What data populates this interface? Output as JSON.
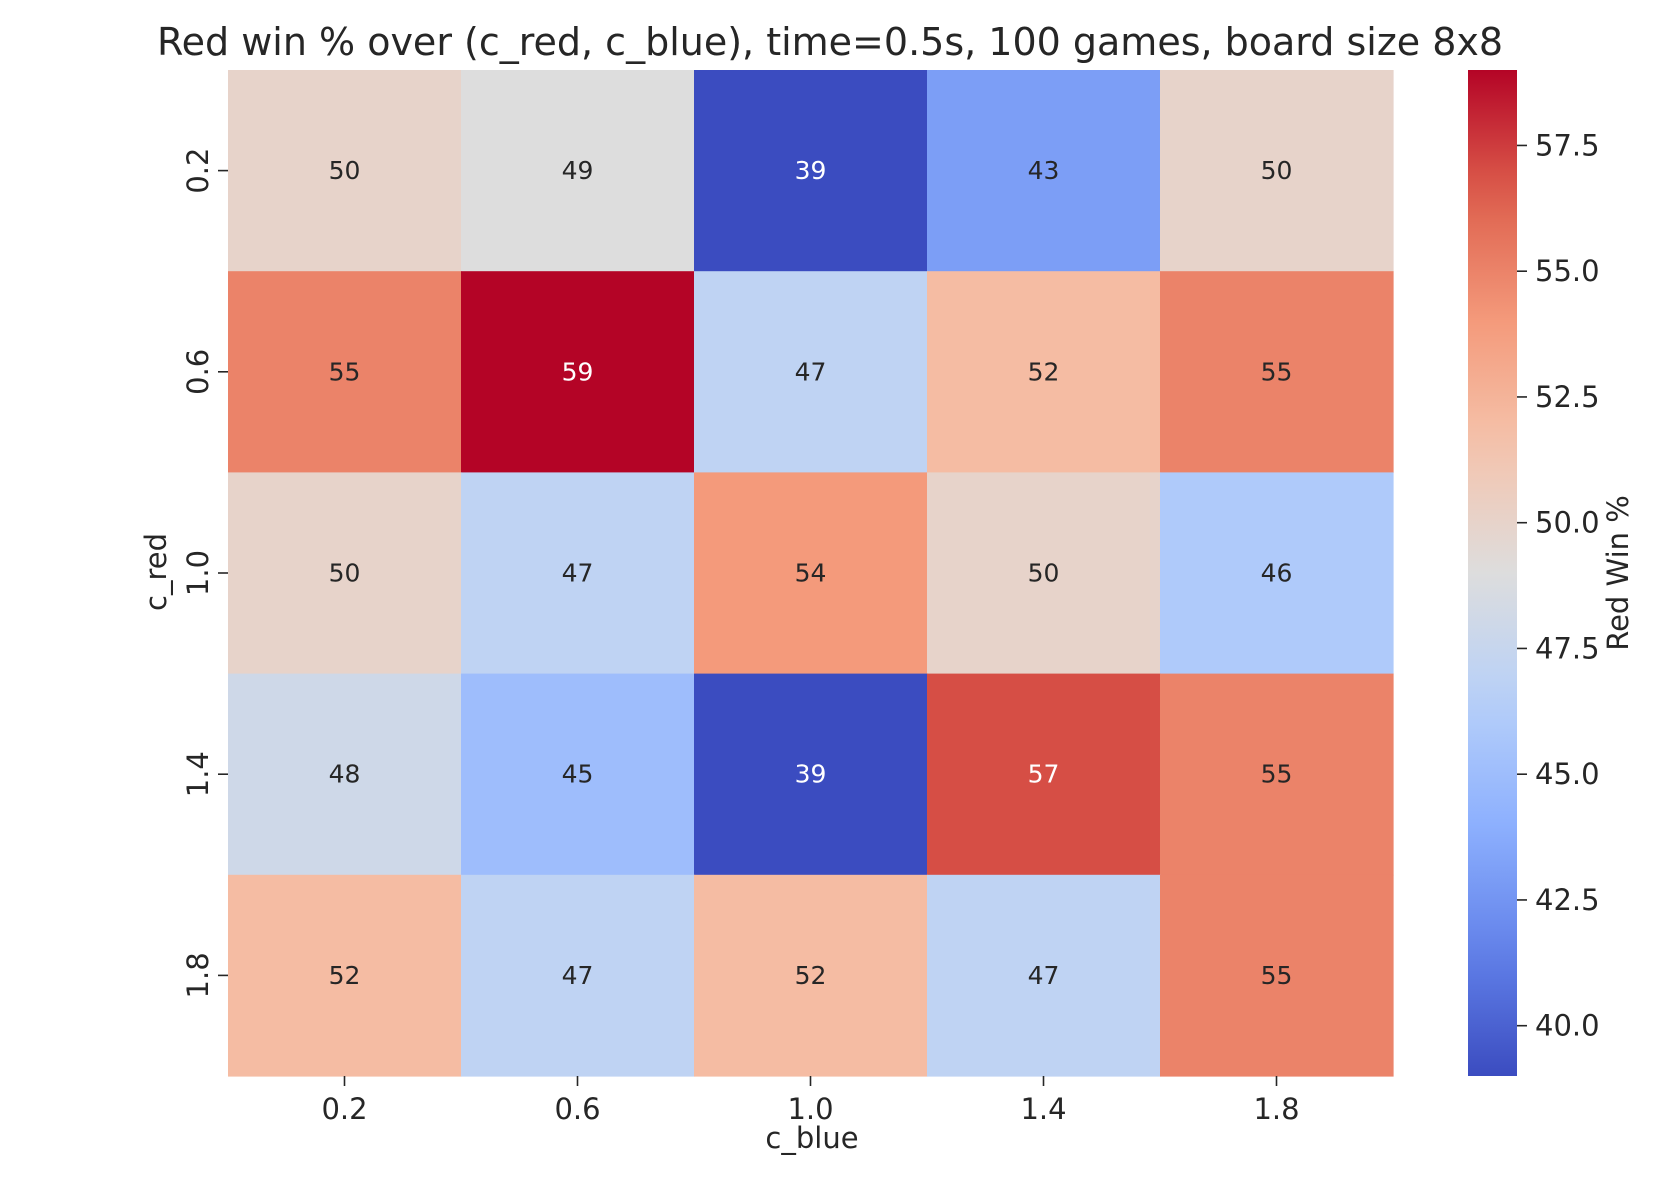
{
  "chart_data": {
    "type": "heatmap",
    "title": "Red win % over (c_red, c_blue), time=0.5s, 100 games, board size 8x8",
    "xlabel": "c_blue",
    "ylabel": "c_red",
    "x_categories": [
      "0.2",
      "0.6",
      "1.0",
      "1.4",
      "1.8"
    ],
    "y_categories": [
      "0.2",
      "0.6",
      "1.0",
      "1.4",
      "1.8"
    ],
    "values": [
      [
        50,
        49,
        39,
        43,
        50
      ],
      [
        55,
        59,
        47,
        52,
        55
      ],
      [
        50,
        47,
        54,
        50,
        46
      ],
      [
        48,
        45,
        39,
        57,
        55
      ],
      [
        52,
        47,
        52,
        47,
        55
      ]
    ],
    "colormap": "coolwarm",
    "vmin": 39,
    "vmax": 59,
    "colorbar": {
      "label": "Red Win %",
      "ticks": [
        "40.0",
        "42.5",
        "45.0",
        "47.5",
        "50.0",
        "52.5",
        "55.0",
        "57.5"
      ]
    },
    "annotated": true,
    "grid": false
  }
}
